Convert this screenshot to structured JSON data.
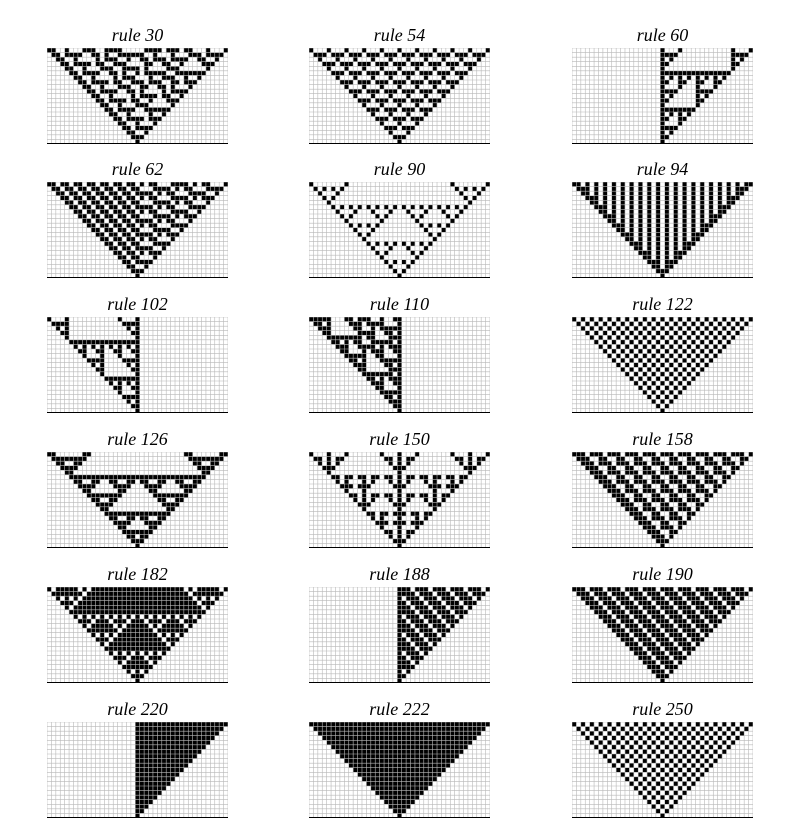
{
  "figure": {
    "panels": [
      {
        "title": "rule 30",
        "rule": 30
      },
      {
        "title": "rule 54",
        "rule": 54
      },
      {
        "title": "rule 60",
        "rule": 60
      },
      {
        "title": "rule 62",
        "rule": 62
      },
      {
        "title": "rule 90",
        "rule": 90
      },
      {
        "title": "rule 94",
        "rule": 94
      },
      {
        "title": "rule 102",
        "rule": 102
      },
      {
        "title": "rule 110",
        "rule": 110
      },
      {
        "title": "rule 122",
        "rule": 122
      },
      {
        "title": "rule 126",
        "rule": 126
      },
      {
        "title": "rule 150",
        "rule": 150
      },
      {
        "title": "rule 158",
        "rule": 158
      },
      {
        "title": "rule 182",
        "rule": 182
      },
      {
        "title": "rule 188",
        "rule": 188
      },
      {
        "title": "rule 190",
        "rule": 190
      },
      {
        "title": "rule 220",
        "rule": 220
      },
      {
        "title": "rule 222",
        "rule": 222
      },
      {
        "title": "rule 250",
        "rule": 250
      }
    ],
    "grid": {
      "columns": 41,
      "steps": 20,
      "initial_condition": "single black cell at center, evolution drawn bottom-to-top"
    },
    "colors": {
      "on_cell": "#000000",
      "off_cell": "#ffffff",
      "grid_line": "#b8b8b8"
    }
  }
}
